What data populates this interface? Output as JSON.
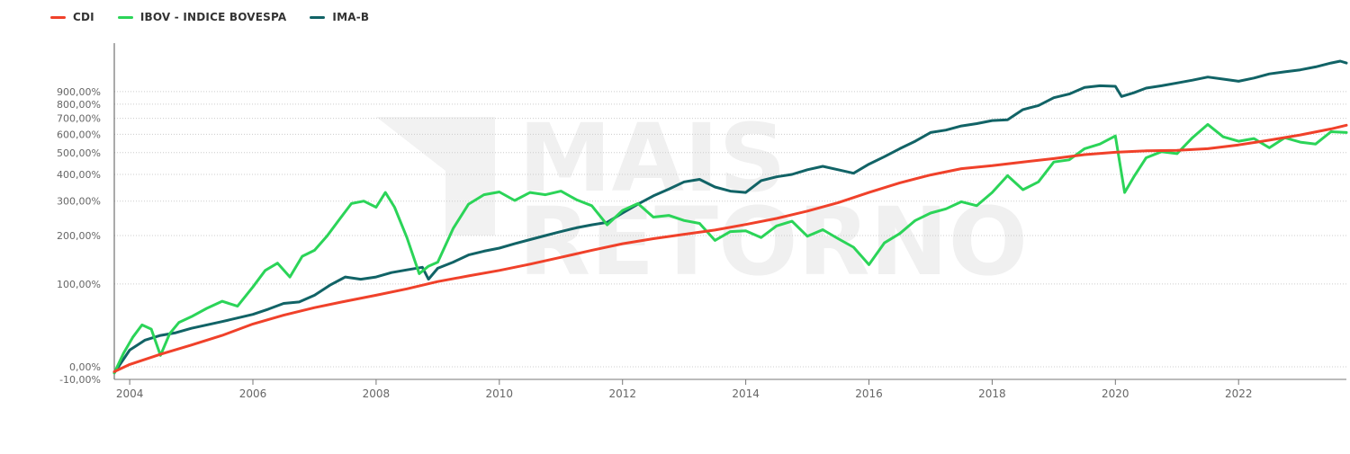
{
  "watermark": {
    "line1": "MAIS",
    "line2": "RETORNO"
  },
  "chart_data": {
    "type": "line",
    "title": "",
    "xlabel": "",
    "ylabel": "",
    "y_scale": "log(1+r)",
    "ylim": [
      -10,
      1400
    ],
    "xlim": [
      2003.75,
      2023.75
    ],
    "grid": true,
    "legend_position": "top-left",
    "y_ticks": [
      {
        "value": 900,
        "label": "900,00%"
      },
      {
        "value": 800,
        "label": "800,00%"
      },
      {
        "value": 700,
        "label": "700,00%"
      },
      {
        "value": 600,
        "label": "600,00%"
      },
      {
        "value": 500,
        "label": "500,00%"
      },
      {
        "value": 400,
        "label": "400,00%"
      },
      {
        "value": 300,
        "label": "300,00%"
      },
      {
        "value": 200,
        "label": "200,00%"
      },
      {
        "value": 100,
        "label": "100,00%"
      },
      {
        "value": 0,
        "label": "0,00%"
      },
      {
        "value": -10,
        "label": "-10,00%"
      }
    ],
    "x_ticks": [
      {
        "value": 2004,
        "label": "2004"
      },
      {
        "value": 2006,
        "label": "2006"
      },
      {
        "value": 2008,
        "label": "2008"
      },
      {
        "value": 2010,
        "label": "2010"
      },
      {
        "value": 2012,
        "label": "2012"
      },
      {
        "value": 2014,
        "label": "2014"
      },
      {
        "value": 2016,
        "label": "2016"
      },
      {
        "value": 2018,
        "label": "2018"
      },
      {
        "value": 2020,
        "label": "2020"
      },
      {
        "value": 2022,
        "label": "2022"
      }
    ],
    "series": [
      {
        "name": "CDI",
        "color": "#f0412a",
        "x": [
          2003.75,
          2004.0,
          2004.5,
          2005.0,
          2005.5,
          2006.0,
          2006.5,
          2007.0,
          2007.5,
          2008.0,
          2008.5,
          2009.0,
          2009.5,
          2010.0,
          2010.5,
          2011.0,
          2011.5,
          2012.0,
          2012.5,
          2013.0,
          2013.5,
          2014.0,
          2014.5,
          2015.0,
          2015.5,
          2016.0,
          2016.5,
          2017.0,
          2017.5,
          2018.0,
          2018.5,
          2019.0,
          2019.5,
          2020.0,
          2020.5,
          2021.0,
          2021.5,
          2022.0,
          2022.5,
          2023.0,
          2023.5,
          2023.75
        ],
        "values": [
          -4,
          2,
          11,
          20,
          30,
          43,
          54,
          64,
          73,
          82,
          92,
          104,
          114,
          124,
          136,
          150,
          165,
          180,
          192,
          203,
          214,
          229,
          246,
          268,
          295,
          330,
          366,
          398,
          425,
          438,
          455,
          471,
          490,
          502,
          509,
          512,
          520,
          540,
          566,
          596,
          632,
          655
        ]
      },
      {
        "name": "IBOV - INDICE BOVESPA",
        "color": "#2bd458",
        "x": [
          2003.75,
          2003.9,
          2004.05,
          2004.2,
          2004.35,
          2004.5,
          2004.65,
          2004.8,
          2005.0,
          2005.25,
          2005.5,
          2005.75,
          2006.0,
          2006.2,
          2006.4,
          2006.6,
          2006.8,
          2007.0,
          2007.2,
          2007.4,
          2007.6,
          2007.8,
          2008.0,
          2008.15,
          2008.3,
          2008.5,
          2008.7,
          2008.85,
          2009.0,
          2009.25,
          2009.5,
          2009.75,
          2010.0,
          2010.25,
          2010.5,
          2010.75,
          2011.0,
          2011.25,
          2011.5,
          2011.75,
          2012.0,
          2012.25,
          2012.5,
          2012.75,
          2013.0,
          2013.25,
          2013.5,
          2013.75,
          2014.0,
          2014.25,
          2014.5,
          2014.75,
          2015.0,
          2015.25,
          2015.5,
          2015.75,
          2016.0,
          2016.25,
          2016.5,
          2016.75,
          2017.0,
          2017.25,
          2017.5,
          2017.75,
          2018.0,
          2018.25,
          2018.5,
          2018.75,
          2019.0,
          2019.25,
          2019.5,
          2019.75,
          2020.0,
          2020.15,
          2020.3,
          2020.5,
          2020.75,
          2021.0,
          2021.25,
          2021.5,
          2021.75,
          2022.0,
          2022.25,
          2022.5,
          2022.75,
          2023.0,
          2023.25,
          2023.5,
          2023.75
        ],
        "values": [
          -5,
          12,
          28,
          42,
          37,
          10,
          32,
          45,
          52,
          63,
          73,
          66,
          95,
          124,
          138,
          112,
          152,
          165,
          198,
          242,
          292,
          300,
          280,
          330,
          280,
          195,
          118,
          132,
          140,
          218,
          290,
          322,
          332,
          302,
          330,
          322,
          335,
          305,
          285,
          228,
          270,
          292,
          250,
          255,
          240,
          232,
          188,
          210,
          212,
          195,
          225,
          238,
          198,
          215,
          192,
          172,
          135,
          182,
          205,
          240,
          262,
          275,
          298,
          285,
          330,
          395,
          340,
          370,
          455,
          465,
          520,
          545,
          590,
          330,
          390,
          475,
          505,
          495,
          580,
          660,
          585,
          560,
          575,
          525,
          580,
          555,
          545,
          615,
          610
        ]
      },
      {
        "name": "IMA-B",
        "color": "#116366",
        "x": [
          2003.75,
          2004.0,
          2004.25,
          2004.5,
          2004.75,
          2005.0,
          2005.5,
          2006.0,
          2006.25,
          2006.5,
          2006.75,
          2007.0,
          2007.25,
          2007.5,
          2007.75,
          2008.0,
          2008.25,
          2008.5,
          2008.75,
          2008.85,
          2009.0,
          2009.25,
          2009.5,
          2009.75,
          2010.0,
          2010.25,
          2010.5,
          2010.75,
          2011.0,
          2011.25,
          2011.5,
          2011.75,
          2012.0,
          2012.25,
          2012.5,
          2012.75,
          2013.0,
          2013.25,
          2013.5,
          2013.75,
          2014.0,
          2014.25,
          2014.5,
          2014.75,
          2015.0,
          2015.25,
          2015.5,
          2015.75,
          2016.0,
          2016.25,
          2016.5,
          2016.75,
          2017.0,
          2017.25,
          2017.5,
          2017.75,
          2018.0,
          2018.25,
          2018.5,
          2018.75,
          2019.0,
          2019.25,
          2019.5,
          2019.75,
          2020.0,
          2020.1,
          2020.3,
          2020.5,
          2020.75,
          2021.0,
          2021.25,
          2021.5,
          2021.75,
          2022.0,
          2022.25,
          2022.5,
          2022.75,
          2023.0,
          2023.25,
          2023.5,
          2023.65,
          2023.75
        ],
        "values": [
          -5,
          15,
          25,
          30,
          33,
          38,
          46,
          55,
          62,
          70,
          72,
          82,
          98,
          112,
          108,
          112,
          120,
          125,
          130,
          108,
          128,
          140,
          155,
          163,
          170,
          180,
          190,
          200,
          210,
          220,
          228,
          235,
          262,
          290,
          318,
          342,
          370,
          380,
          350,
          335,
          330,
          375,
          390,
          400,
          420,
          435,
          420,
          405,
          445,
          480,
          520,
          560,
          610,
          625,
          650,
          665,
          685,
          690,
          760,
          790,
          850,
          880,
          935,
          950,
          945,
          860,
          890,
          930,
          950,
          975,
          1000,
          1030,
          1010,
          990,
          1020,
          1060,
          1080,
          1100,
          1130,
          1170,
          1190,
          1170
        ]
      }
    ]
  }
}
